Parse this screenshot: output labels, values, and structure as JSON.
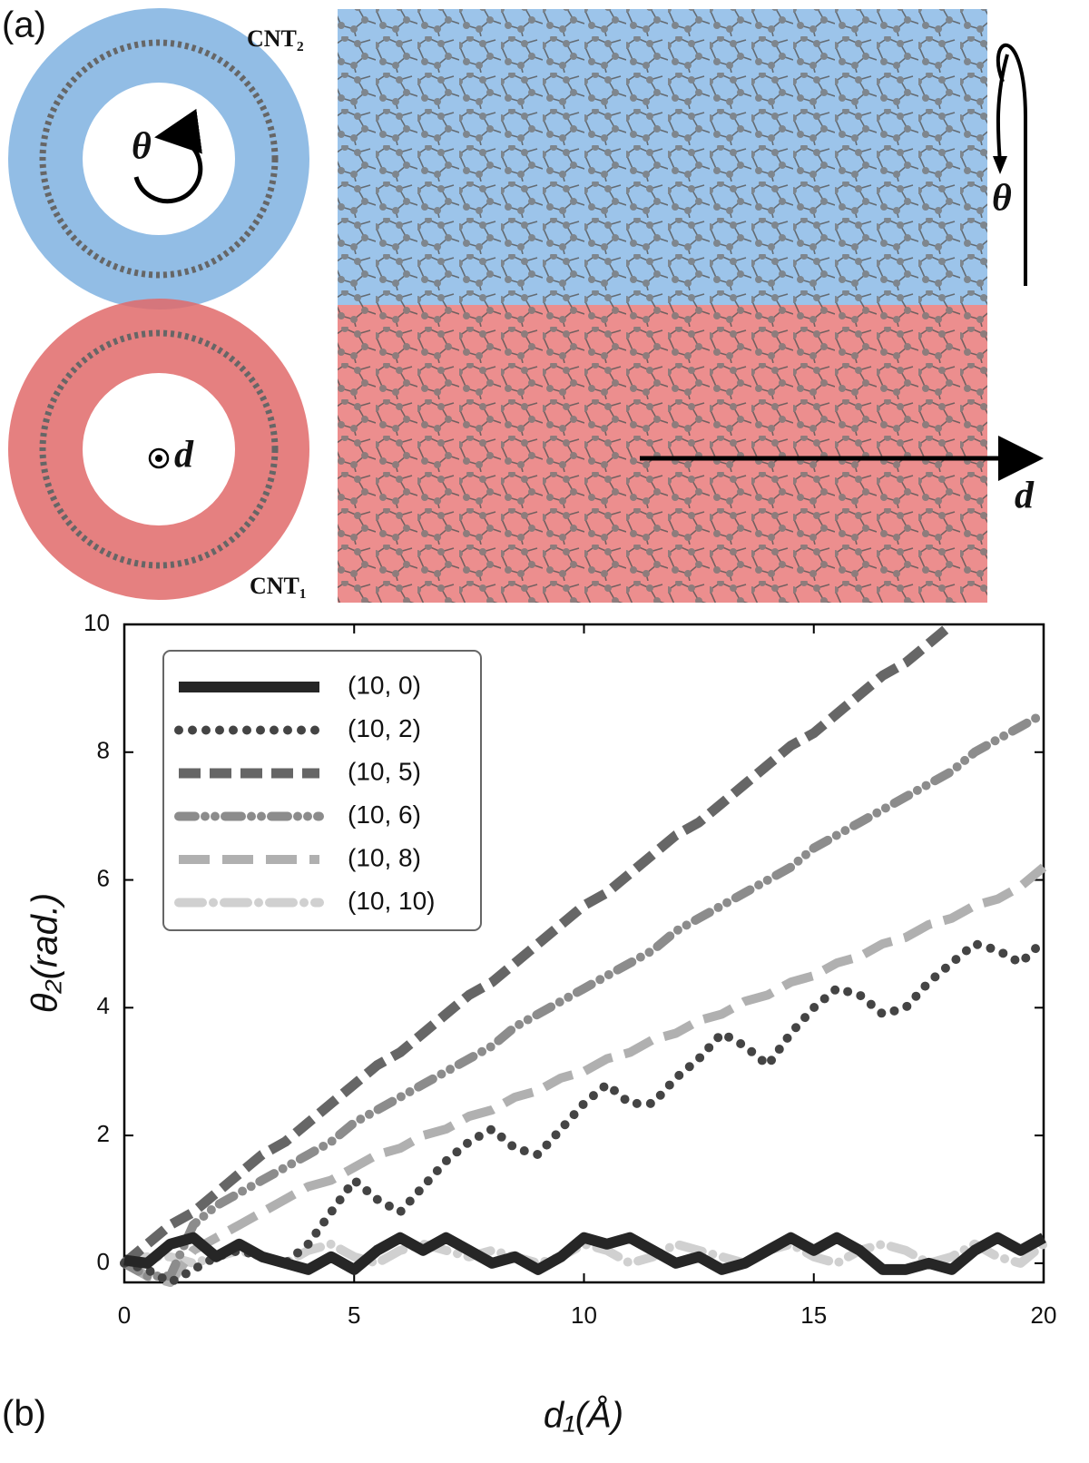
{
  "illustration": {
    "panel_label": "(a)",
    "top_tube": "CNT₂",
    "bottom_tube": "CNT₁",
    "ring_rotation": "θ",
    "ring_axis": "d",
    "side_rotation": "θ",
    "side_axis": "d"
  },
  "chart_data": {
    "type": "line",
    "panel_label": "(b)",
    "x_label": "d₁(Å)",
    "y_label": "θ₂(rad.)",
    "x": [
      0,
      0.5,
      1,
      1.5,
      2,
      2.5,
      3,
      3.5,
      4,
      4.5,
      5,
      5.5,
      6,
      6.5,
      7,
      7.5,
      8,
      8.5,
      9,
      9.5,
      10,
      10.5,
      11,
      11.5,
      12,
      12.5,
      13,
      13.5,
      14,
      14.5,
      15,
      15.5,
      16,
      16.5,
      17,
      17.5,
      18,
      18.5,
      19,
      19.5,
      20
    ],
    "series": [
      {
        "name": "(10, 0)",
        "color": "#262626",
        "line_style": "solid",
        "values": [
          0.05,
          0.0,
          0.3,
          0.4,
          0.1,
          0.3,
          0.1,
          0.0,
          -0.1,
          0.1,
          -0.1,
          0.2,
          0.4,
          0.2,
          0.4,
          0.2,
          0.0,
          0.1,
          -0.1,
          0.1,
          0.4,
          0.3,
          0.4,
          0.2,
          0.0,
          0.1,
          -0.1,
          0.0,
          0.2,
          0.4,
          0.2,
          0.4,
          0.2,
          -0.1,
          -0.1,
          0.0,
          -0.1,
          0.2,
          0.4,
          0.2,
          0.4
        ]
      },
      {
        "name": "(10, 2)",
        "color": "#444444",
        "line_style": "dotted",
        "values": [
          0,
          -0.1,
          -0.3,
          -0.1,
          0.1,
          0.2,
          0.1,
          0.0,
          0.3,
          0.8,
          1.3,
          1.0,
          0.8,
          1.2,
          1.6,
          1.9,
          2.1,
          1.8,
          1.7,
          2.1,
          2.5,
          2.8,
          2.5,
          2.5,
          2.9,
          3.2,
          3.6,
          3.4,
          3.1,
          3.6,
          4.0,
          4.3,
          4.2,
          3.9,
          4.0,
          4.4,
          4.7,
          5.0,
          4.9,
          4.7,
          5.05
        ]
      },
      {
        "name": "(10, 5)",
        "color": "#666666",
        "line_style": "dashed",
        "values": [
          0,
          0.3,
          0.6,
          0.8,
          1.1,
          1.4,
          1.7,
          1.9,
          2.2,
          2.5,
          2.8,
          3.1,
          3.3,
          3.6,
          3.9,
          4.2,
          4.4,
          4.7,
          5.0,
          5.3,
          5.6,
          5.8,
          6.1,
          6.4,
          6.7,
          6.9,
          7.2,
          7.5,
          7.8,
          8.1,
          8.3,
          8.6,
          8.9,
          9.2,
          9.4,
          9.7,
          10.0,
          null,
          null,
          null,
          null
        ]
      },
      {
        "name": "(10, 6)",
        "color": "#8c8c8c",
        "line_style": "dash-dot-dot",
        "values": [
          0,
          -0.2,
          -0.2,
          0.6,
          0.9,
          1.1,
          1.3,
          1.5,
          1.7,
          1.9,
          2.2,
          2.4,
          2.6,
          2.8,
          3.0,
          3.2,
          3.4,
          3.7,
          3.9,
          4.1,
          4.3,
          4.5,
          4.7,
          4.9,
          5.2,
          5.4,
          5.6,
          5.8,
          6.0,
          6.2,
          6.5,
          6.7,
          6.9,
          7.1,
          7.3,
          7.5,
          7.7,
          8.0,
          8.2,
          8.4,
          8.6
        ]
      },
      {
        "name": "(10, 8)",
        "color": "#b0b0b0",
        "line_style": "long-dash",
        "values": [
          0,
          -0.2,
          -0.3,
          0.2,
          0.4,
          0.6,
          0.8,
          1.0,
          1.2,
          1.3,
          1.5,
          1.7,
          1.8,
          2.0,
          2.1,
          2.3,
          2.4,
          2.6,
          2.7,
          2.9,
          3.0,
          3.2,
          3.3,
          3.5,
          3.6,
          3.8,
          3.9,
          4.1,
          4.2,
          4.4,
          4.5,
          4.7,
          4.8,
          5.0,
          5.1,
          5.3,
          5.4,
          5.6,
          5.7,
          5.9,
          6.2
        ]
      },
      {
        "name": "(10, 10)",
        "color": "#d0d0d0",
        "line_style": "dash-dot",
        "values": [
          0.0,
          0.1,
          0.1,
          0.0,
          0.1,
          0.2,
          0.1,
          0.0,
          0.2,
          0.3,
          0.1,
          0.0,
          0.2,
          0.3,
          0.2,
          0.1,
          0.2,
          0.1,
          0.0,
          0.1,
          0.3,
          0.2,
          0.0,
          0.1,
          0.3,
          0.2,
          0.1,
          0.0,
          0.2,
          0.3,
          0.1,
          0.0,
          0.2,
          0.3,
          0.2,
          0.0,
          0.1,
          0.3,
          0.1,
          0.0,
          0.3
        ]
      }
    ],
    "xlim": [
      0,
      20
    ],
    "xticks": [
      0,
      5,
      10,
      15,
      20
    ],
    "ylim": [
      -0.3,
      10
    ],
    "yticks": [
      0,
      2,
      4,
      6,
      8,
      10
    ],
    "grid": false,
    "legend": "upper left"
  }
}
